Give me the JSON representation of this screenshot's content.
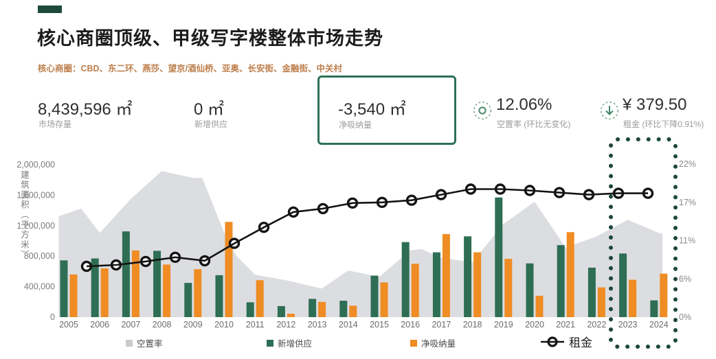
{
  "header": {
    "title": "核心商圈顶级、甲级写字楼整体市场走势",
    "subtitle": "核心商圈：CBD、东二环、燕莎、望京/酒仙桥、亚奥、长安街、金融街、中关村"
  },
  "kpis": {
    "market_stock": {
      "value": "8,439,596 ㎡",
      "label": "市场存量"
    },
    "new_supply": {
      "value": "0 ㎡",
      "label": "新增供应"
    },
    "net_absorption": {
      "value": "-3,540 ㎡",
      "label": "净吸纳量"
    },
    "vacancy": {
      "value": "12.06%",
      "label": "空置率 (环比无变化)",
      "icon": "target-circle-icon"
    },
    "rent": {
      "value": "¥ 379.50",
      "label": "租金 (环比下降0.91%)",
      "icon": "arrow-down-icon"
    }
  },
  "colors": {
    "accent_green": "#1d4a3c",
    "bar_green": "#2e6e54",
    "bar_orange": "#ef8c24",
    "vacancy_area": "#dcdde0",
    "line_black": "#141414",
    "highlight_dots": "#1d473a",
    "box_border": "#2b7157",
    "icon_green": "#4d8a6a",
    "subtitle_orange": "#bd7e4b"
  },
  "chart_data": {
    "type": "combo",
    "title": "核心商圈顶级、甲级写字楼整体市场走势",
    "categories": [
      2005,
      2006,
      2007,
      2008,
      2009,
      2010,
      2011,
      2012,
      2013,
      2014,
      2015,
      2016,
      2017,
      2018,
      2019,
      2020,
      2021,
      2022,
      2023,
      2024
    ],
    "axis_left": {
      "title": "建筑面积（平方米）",
      "tick_labels": [
        "0",
        "400,000",
        "800,000",
        "1,200,000",
        "1,600,000",
        "2,000,000"
      ],
      "tick_values": [
        0,
        400000,
        800000,
        1200000,
        1600000,
        2000000
      ],
      "max": 2000000
    },
    "axis_right": {
      "tick_labels": [
        "0%",
        "6%",
        "11%",
        "17%",
        "22%"
      ],
      "tick_positions": [
        0,
        5.5,
        11,
        16.5,
        22
      ],
      "max": 22
    },
    "series": {
      "vacancy": {
        "label": "空置率",
        "type": "area",
        "unit": "%",
        "axis": "right",
        "values": [
          15.0,
          12.1,
          17.0,
          21.0,
          20.0,
          12.2,
          6.1,
          5.3,
          4.2,
          6.7,
          5.8,
          9.6,
          8.5,
          7.9,
          13.4,
          16.6,
          10.0,
          11.6,
          14.0,
          12.06
        ]
      },
      "new_supply": {
        "label": "新增供应",
        "type": "bar",
        "unit": "㎡",
        "axis": "left",
        "values": [
          745000,
          770000,
          1125000,
          870000,
          450000,
          550000,
          195000,
          145000,
          240000,
          215000,
          545000,
          985000,
          850000,
          1060000,
          1570000,
          705000,
          945000,
          650000,
          835000,
          220000
        ]
      },
      "net_absorption": {
        "label": "净吸纳量",
        "type": "bar",
        "unit": "㎡",
        "axis": "left",
        "values": [
          560000,
          640000,
          875000,
          690000,
          630000,
          1250000,
          485000,
          45000,
          200000,
          150000,
          455000,
          700000,
          1090000,
          850000,
          765000,
          280000,
          1115000,
          390000,
          490000,
          570000
        ]
      },
      "rent": {
        "label": "租金",
        "type": "line",
        "axis": "right",
        "note": "values read as right-axis visual positions, current rent ¥379.50",
        "values": [
          7.3,
          7.5,
          8.0,
          8.6,
          8.1,
          10.6,
          12.9,
          15.1,
          15.6,
          16.4,
          16.5,
          16.8,
          17.6,
          18.4,
          18.4,
          18.2,
          17.9,
          17.6,
          17.8,
          17.8
        ]
      }
    },
    "vacancy_curve": [
      [
        2004.68,
        14.5
      ],
      [
        2005,
        15.0
      ],
      [
        2005.4,
        15.6
      ],
      [
        2006,
        12.1
      ],
      [
        2007,
        17.0
      ],
      [
        2008,
        21.0
      ],
      [
        2008.4,
        20.6
      ],
      [
        2009,
        20.0
      ],
      [
        2009.3,
        20.0
      ],
      [
        2010,
        12.2
      ],
      [
        2010.4,
        8.8
      ],
      [
        2011,
        6.1
      ],
      [
        2012,
        5.3
      ],
      [
        2013.15,
        4.1
      ],
      [
        2014,
        6.7
      ],
      [
        2015,
        5.8
      ],
      [
        2016,
        9.6
      ],
      [
        2016.35,
        9.8
      ],
      [
        2017,
        8.5
      ],
      [
        2018,
        7.9
      ],
      [
        2019,
        13.4
      ],
      [
        2020,
        16.6
      ],
      [
        2021,
        10.0
      ],
      [
        2022,
        11.6
      ],
      [
        2023,
        14.0
      ],
      [
        2024,
        12.1
      ],
      [
        2024.12,
        12.0
      ]
    ],
    "highlight": {
      "range": "2023-2024"
    },
    "legend_position": "bottom"
  }
}
